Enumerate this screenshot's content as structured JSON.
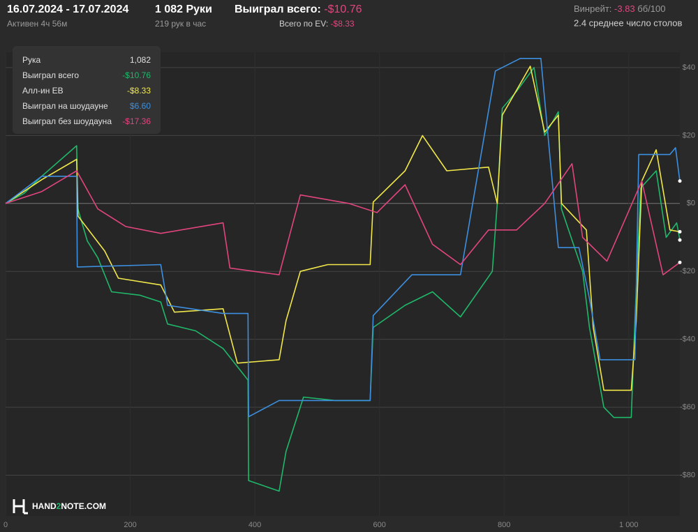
{
  "header": {
    "dates": "16.07.2024 - 17.07.2024",
    "active": "Активен 4ч 56м",
    "hands": "1 082 Руки",
    "rate": "219 рук в час",
    "won_label": "Выиграл всего:",
    "won_value": "-$10.76",
    "ev_label": "Всего по EV:",
    "ev_value": "-$8.33",
    "winrate_label": "Винрейт:",
    "winrate_value": "-3.83",
    "winrate_unit": "бб/100",
    "tables": "2.4 среднее число столов"
  },
  "legend": {
    "hands_label": "Рука",
    "hands_value": "1,082"
  },
  "logo": [
    "HAND",
    "2",
    "NOTE.COM"
  ],
  "chart_data": {
    "type": "line",
    "xlim": [
      0,
      1082
    ],
    "ylim": [
      -92,
      44.5
    ],
    "xticks": [
      0,
      200,
      400,
      600,
      800,
      {
        "value": 1000,
        "label": "1 000"
      }
    ],
    "yticks": [
      {
        "value": 40,
        "label": "$40"
      },
      {
        "value": 20,
        "label": "$20"
      },
      {
        "value": 0,
        "label": "$0"
      },
      {
        "value": -20,
        "label": "-$20"
      },
      {
        "value": -40,
        "label": "-$40"
      },
      {
        "value": -60,
        "label": "-$60"
      },
      {
        "value": -80,
        "label": "-$80"
      }
    ],
    "grid": true,
    "series": [
      {
        "name": "Выиграл всего",
        "total": "-$10.76",
        "color": "#1fb86a",
        "x": [
          0,
          30,
          58,
          114,
          116,
          131,
          148,
          170,
          215,
          249,
          260,
          305,
          349,
          389,
          390,
          439,
          450,
          478,
          529,
          585,
          590,
          641,
          685,
          730,
          781,
          789,
          797,
          820,
          848,
          865,
          887,
          892,
          926,
          937,
          960,
          976,
          1004,
          1010,
          1019,
          1044,
          1060,
          1077,
          1082
        ],
        "values": [
          0,
          3,
          8,
          17,
          -1.6,
          -11,
          -16,
          -26,
          -27,
          -29,
          -35.5,
          -37.5,
          -42.7,
          -52,
          -81.6,
          -84.7,
          -73,
          -57,
          -58,
          -58,
          -36.5,
          -30,
          -26,
          -33.4,
          -20,
          0,
          28,
          33,
          40,
          20,
          27,
          -1.6,
          -20,
          -36.5,
          -60,
          -63,
          -63,
          -34,
          4.5,
          9.6,
          -10,
          -5.7,
          -10.76
        ]
      },
      {
        "name": "Алл-ин EB",
        "total": "-$8.33",
        "color": "#f2e84a",
        "x": [
          0,
          58,
          114,
          116,
          159,
          181,
          249,
          271,
          349,
          372,
          439,
          450,
          473,
          517,
          585,
          590,
          641,
          669,
          708,
          775,
          789,
          797,
          842,
          865,
          887,
          892,
          932,
          943,
          960,
          976,
          1004,
          1012,
          1021,
          1044,
          1066,
          1082
        ],
        "values": [
          0,
          7,
          13,
          -3.7,
          -14,
          -22,
          -24,
          -32,
          -31,
          -47,
          -46,
          -34.5,
          -20,
          -18,
          -18,
          0.4,
          9.6,
          20,
          9.6,
          10.7,
          0,
          26,
          40.4,
          21,
          26,
          0,
          -7.8,
          -36.5,
          -55,
          -55,
          -55,
          -34.5,
          6.6,
          15.8,
          -7.8,
          -8.33
        ]
      },
      {
        "name": "Выиграл на шоудауне",
        "total": "$6.60",
        "color": "#3d8fe0",
        "x": [
          0,
          58,
          114,
          115,
          249,
          260,
          349,
          389,
          390,
          439,
          585,
          590,
          652,
          730,
          786,
          826,
          859,
          887,
          920,
          937,
          954,
          1010,
          1016,
          1066,
          1075,
          1082
        ],
        "values": [
          0,
          8,
          8,
          -18.7,
          -18,
          -30,
          -32.4,
          -32.4,
          -62.8,
          -58,
          -58,
          -33,
          -21,
          -21,
          39,
          42.7,
          42.7,
          -13,
          -13,
          -28,
          -46,
          -46,
          14.4,
          14.4,
          16.4,
          6.6
        ]
      },
      {
        "name": "Выиграл без шоудауна",
        "total": "-$17.36",
        "color": "#e2457e",
        "x": [
          0,
          58,
          114,
          148,
          193,
          249,
          349,
          360,
          439,
          473,
          551,
          596,
          641,
          685,
          730,
          775,
          820,
          865,
          909,
          926,
          965,
          1021,
          1055,
          1082
        ],
        "values": [
          0,
          3.5,
          9.6,
          -1.6,
          -6.8,
          -8.8,
          -5.7,
          -19,
          -21,
          2.5,
          0,
          -2.7,
          5.5,
          -12,
          -18,
          -7.8,
          -7.8,
          0,
          11.7,
          -10,
          -17,
          6.6,
          -21,
          -17.36
        ]
      }
    ]
  }
}
